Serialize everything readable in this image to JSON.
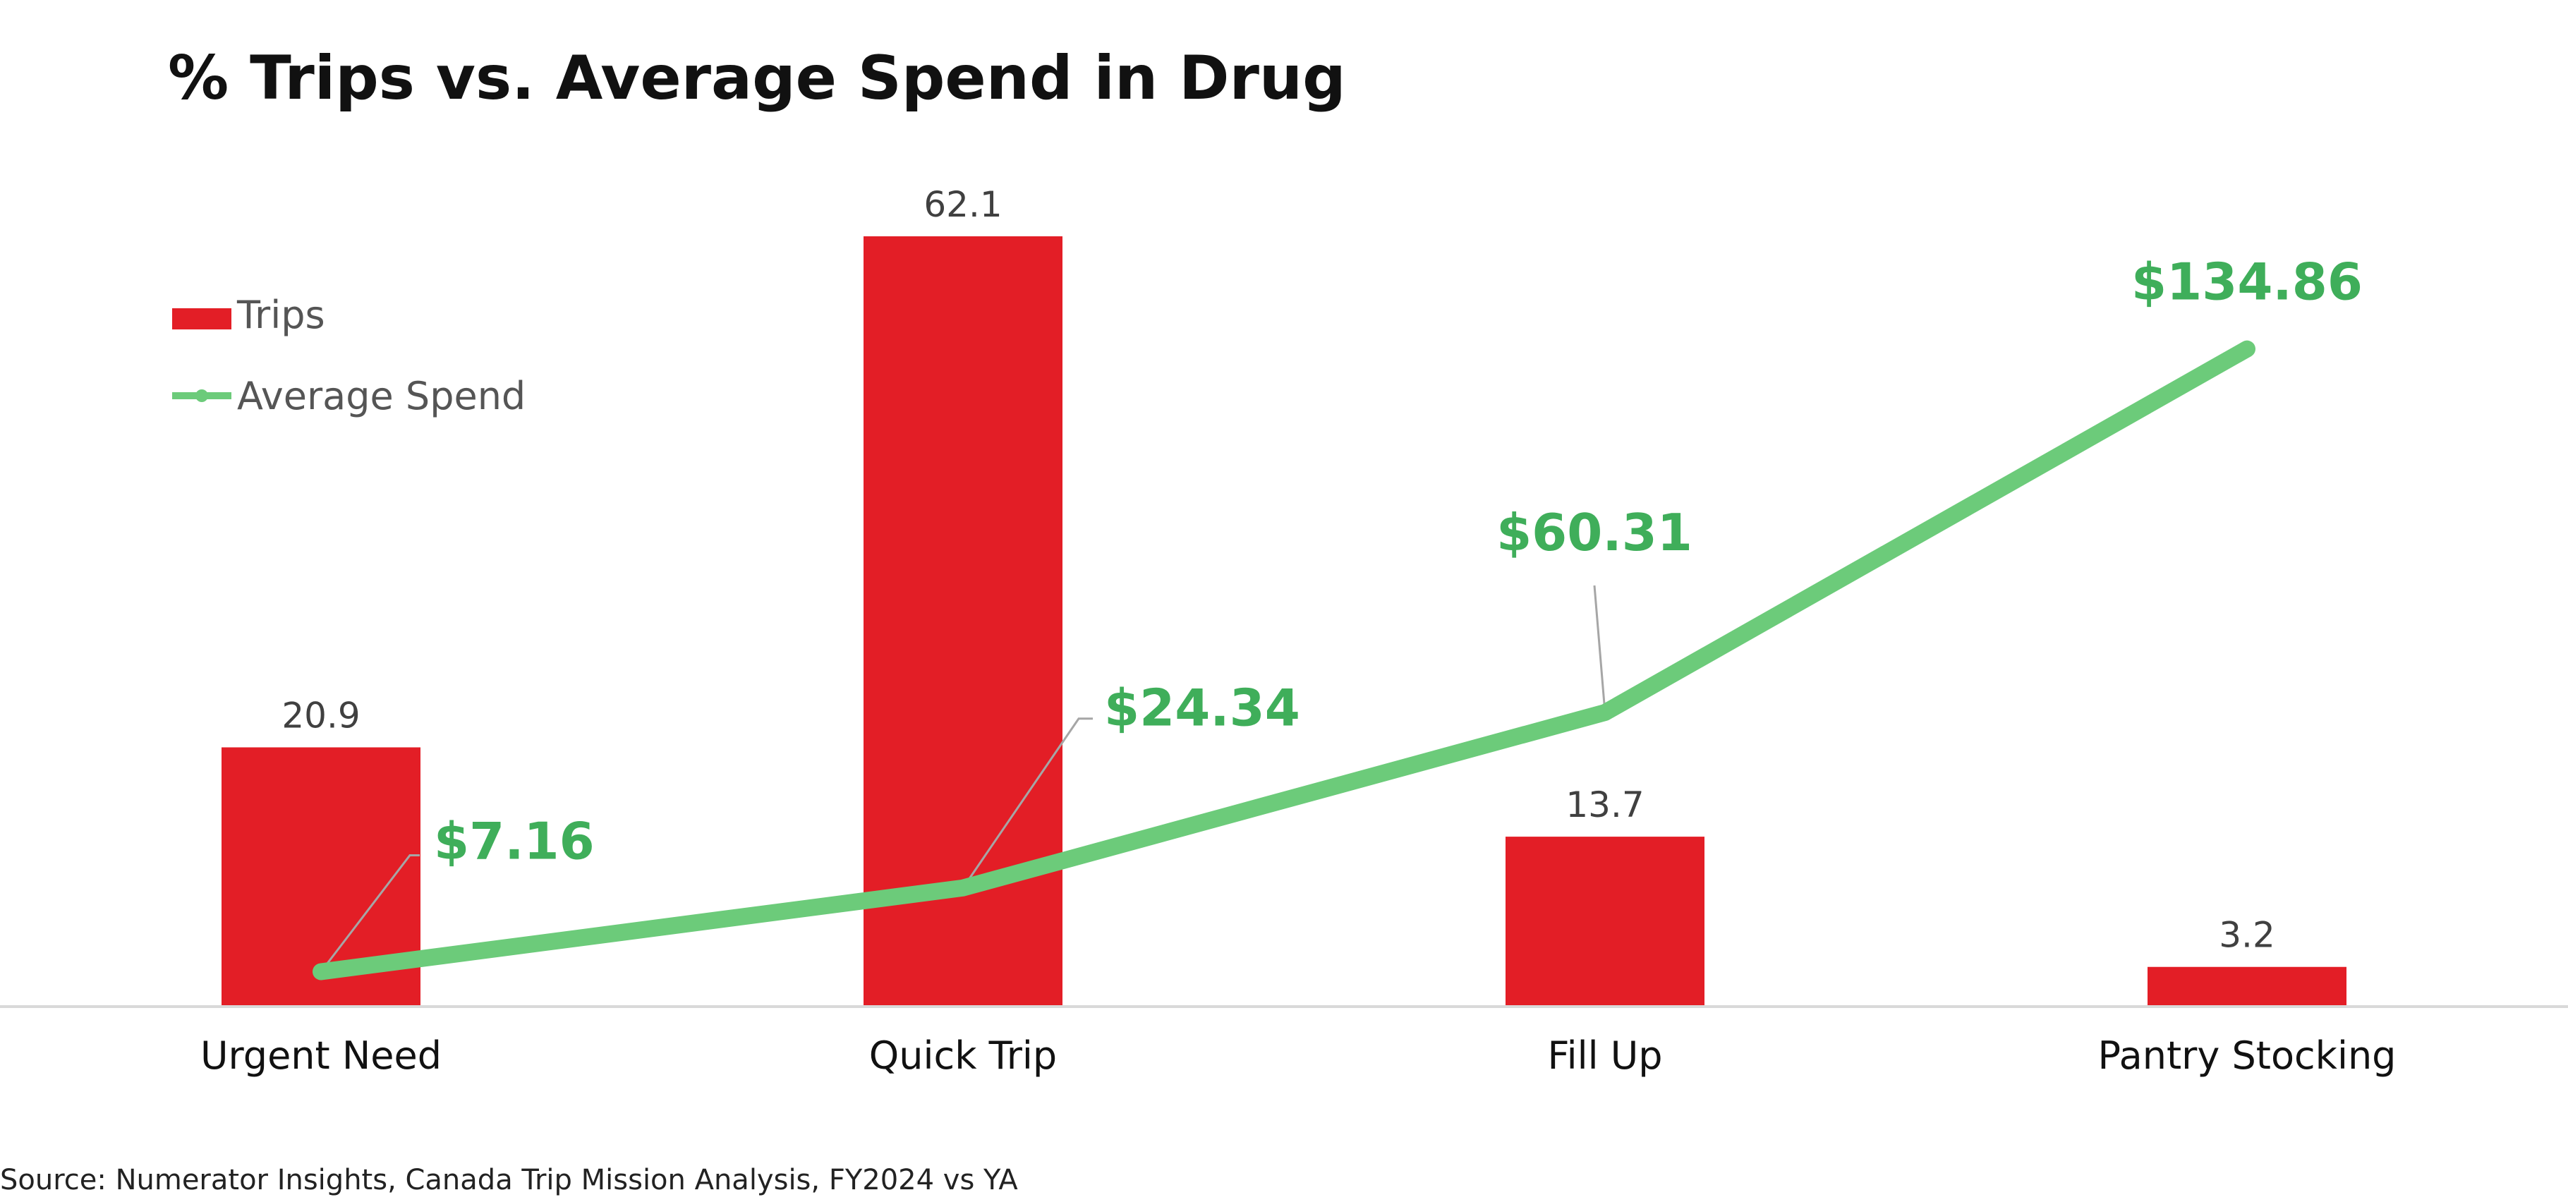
{
  "chart_data": {
    "type": "bar",
    "title": "% Trips vs. Average Spend in Drug",
    "categories": [
      "Urgent Need",
      "Quick Trip",
      "Fill Up",
      "Pantry Stocking"
    ],
    "series": [
      {
        "name": "Trips",
        "type": "bar",
        "values": [
          20.9,
          62.1,
          13.7,
          3.2
        ],
        "labels": [
          "20.9",
          "62.1",
          "13.7",
          "3.2"
        ],
        "color": "#E31E26"
      },
      {
        "name": "Average Spend",
        "type": "line",
        "values": [
          7.16,
          24.34,
          60.31,
          134.86
        ],
        "labels": [
          "$7.16",
          "$24.34",
          "$60.31",
          "$134.86"
        ],
        "color": "#6CCB7A",
        "label_color": "#3FAE5A"
      }
    ],
    "xlabel": "",
    "ylabel": "",
    "legend_position": "top-left",
    "grid": false,
    "source": "Source: Numerator Insights, Canada Trip Mission Analysis, FY2024 vs YA"
  },
  "colors": {
    "baseline": "#D9D9D9",
    "leader": "#A6A6A6"
  }
}
